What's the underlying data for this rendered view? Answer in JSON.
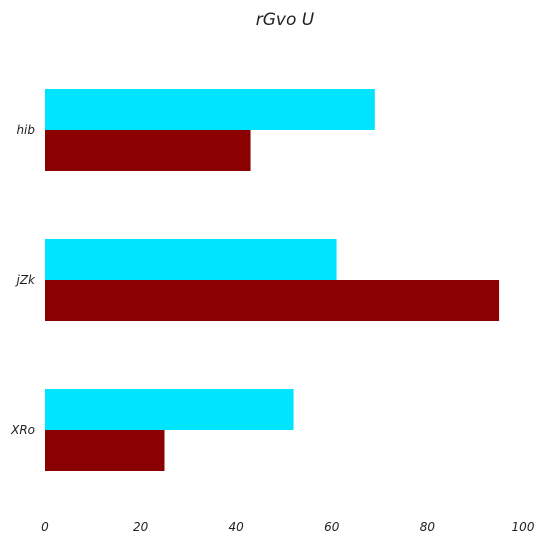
{
  "chart_data": {
    "type": "bar",
    "orientation": "horizontal",
    "title": "rGvo  U",
    "xlabel": "",
    "ylabel": "",
    "categories": [
      "hib",
      "jZk",
      "XRo"
    ],
    "series": [
      {
        "color": "#00e5ff",
        "values": [
          69,
          61,
          52
        ]
      },
      {
        "color": "#8b0000",
        "values": [
          43,
          95,
          25
        ]
      }
    ],
    "xlim": [
      0,
      100
    ],
    "xticks": [
      0,
      20,
      40,
      60,
      80,
      100
    ],
    "grid": false,
    "legend": "none"
  }
}
